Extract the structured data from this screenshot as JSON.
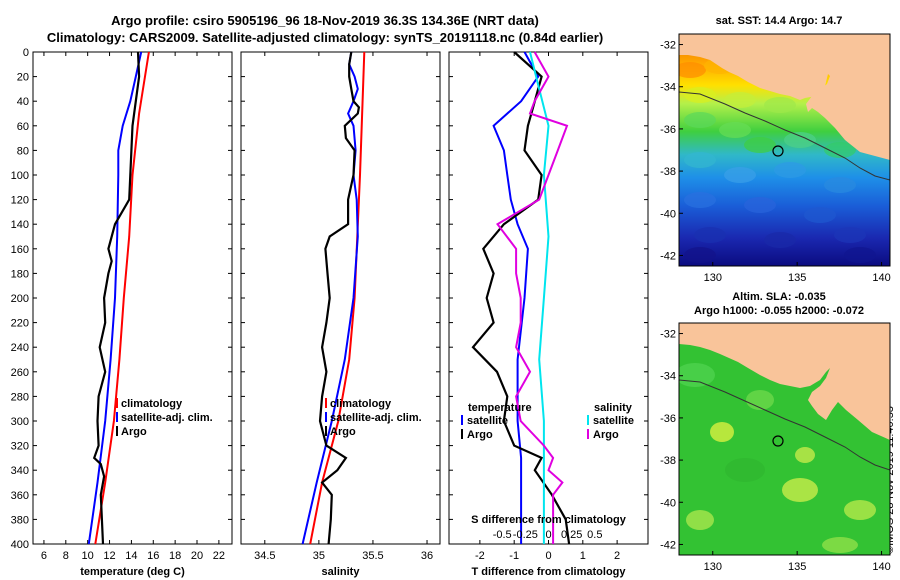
{
  "title_line1": "Argo profile: csiro 5905196_96 18-Nov-2019 36.3S 134.36E (NRT data)",
  "title_line2": "Climatology: CARS2009. Satellite-adjusted climatology: synTS_20191118.nc (0.84d earlier)",
  "sst_title": "sat. SST: 14.4 Argo: 14.7",
  "sla_title1": "Altim. SLA: -0.035",
  "sla_title2": "Argo h1000: -0.055 h2000: -0.072",
  "credit": "©IMOS 28-Nov-2019 11:40:53",
  "colors": {
    "climatology": "#ff0000",
    "satellite": "#0000ff",
    "argo": "#000000",
    "sal_satellite": "#00e5ee",
    "sal_argo": "#e000e0",
    "land": "#f9c49a"
  },
  "chart_data": [
    {
      "type": "line",
      "title": "",
      "xlabel": "temperature (deg C)",
      "ylabel": "",
      "xlim": [
        5,
        23.2
      ],
      "ylim": [
        400,
        0
      ],
      "xticks": [
        "6",
        "8",
        "10",
        "12",
        "14",
        "16",
        "18",
        "20",
        "22"
      ],
      "yticks": [
        "0",
        "20",
        "40",
        "60",
        "80",
        "100",
        "120",
        "140",
        "160",
        "180",
        "200",
        "220",
        "240",
        "260",
        "280",
        "300",
        "320",
        "340",
        "360",
        "380",
        "400"
      ],
      "legend": [
        "climatology",
        "satellite-adj. clim.",
        "Argo"
      ],
      "series": [
        {
          "name": "climatology",
          "color": "red",
          "depth": [
            0,
            50,
            100,
            150,
            200,
            250,
            300,
            350,
            400
          ],
          "values": [
            15.6,
            14.7,
            14.1,
            13.8,
            13.3,
            12.9,
            12.4,
            11.6,
            10.7
          ]
        },
        {
          "name": "satellite-adj. clim.",
          "color": "blue",
          "depth": [
            0,
            20,
            40,
            60,
            80,
            100,
            150,
            200,
            250,
            300,
            350,
            400
          ],
          "values": [
            14.9,
            14.4,
            13.9,
            13.2,
            12.8,
            12.8,
            12.7,
            12.5,
            12.1,
            11.6,
            10.9,
            10.1
          ]
        },
        {
          "name": "Argo",
          "color": "black",
          "depth": [
            0,
            20,
            40,
            60,
            80,
            100,
            120,
            140,
            160,
            170,
            180,
            200,
            220,
            240,
            260,
            280,
            300,
            320,
            330,
            335,
            345,
            360,
            380,
            400
          ],
          "values": [
            14.6,
            14.7,
            14.4,
            14.1,
            14.0,
            13.9,
            13.8,
            12.5,
            11.9,
            12.2,
            11.9,
            11.5,
            11.6,
            11.1,
            11.6,
            11.0,
            10.9,
            11.0,
            10.6,
            11.2,
            11.5,
            11.2,
            11.3,
            11.4
          ]
        }
      ]
    },
    {
      "type": "line",
      "xlabel": "salinity",
      "xlim": [
        34.28,
        36.12
      ],
      "ylim": [
        400,
        0
      ],
      "xticks": [
        "34.5",
        "35",
        "35.5",
        "36"
      ],
      "legend": [
        "climatology",
        "satellite-adj. clim.",
        "Argo"
      ],
      "series": [
        {
          "name": "climatology",
          "color": "red",
          "depth": [
            0,
            100,
            200,
            250,
            300,
            350,
            400
          ],
          "values": [
            35.42,
            35.38,
            35.33,
            35.28,
            35.18,
            35.03,
            34.92
          ]
        },
        {
          "name": "satellite-adj. clim.",
          "color": "blue",
          "depth": [
            0,
            10,
            20,
            30,
            40,
            50,
            60,
            80,
            100,
            120,
            150,
            200,
            250,
            300,
            350,
            400
          ],
          "values": [
            35.3,
            35.28,
            35.33,
            35.36,
            35.32,
            35.27,
            35.32,
            35.34,
            35.32,
            35.35,
            35.36,
            35.32,
            35.24,
            35.12,
            34.98,
            34.85
          ]
        },
        {
          "name": "Argo",
          "color": "black",
          "depth": [
            0,
            10,
            20,
            30,
            40,
            45,
            50,
            60,
            70,
            80,
            100,
            120,
            140,
            150,
            160,
            180,
            200,
            220,
            240,
            260,
            280,
            300,
            320,
            330,
            340,
            350,
            360,
            380,
            400
          ],
          "values": [
            35.3,
            35.28,
            35.28,
            35.3,
            35.32,
            35.37,
            35.36,
            35.24,
            35.25,
            35.33,
            35.32,
            35.27,
            35.27,
            35.1,
            35.06,
            35.08,
            35.1,
            35.07,
            35.03,
            35.07,
            35.03,
            35.01,
            35.07,
            35.25,
            35.17,
            35.03,
            35.12,
            35.11,
            35.09
          ]
        }
      ]
    },
    {
      "type": "line",
      "xlabel": "T difference from climatology",
      "xlabel_top": "S difference from climatology",
      "xlim": [
        -2.9,
        2.9
      ],
      "xticks": [
        "-2",
        "-1",
        "0",
        "1",
        "2"
      ],
      "top_xticks": [
        "-0.5",
        "-0.25",
        "0",
        "0.25",
        "0.5"
      ],
      "ylim": [
        400,
        0
      ],
      "legend_temperature": "temperature",
      "legend_salinity": "salinity",
      "legend_entries": [
        "satellite",
        "Argo",
        "satellite",
        "Argo"
      ],
      "series": [
        {
          "name": "T satellite",
          "color": "blue",
          "depth": [
            0,
            20,
            40,
            60,
            80,
            100,
            120,
            140,
            160,
            200,
            250,
            300,
            330,
            360,
            400
          ],
          "values": [
            -0.7,
            -0.3,
            -0.8,
            -1.6,
            -1.3,
            -1.2,
            -1.1,
            -0.9,
            -0.6,
            -0.7,
            -0.9,
            -0.9,
            -0.8,
            -0.8,
            -0.8
          ]
        },
        {
          "name": "T Argo",
          "color": "black",
          "depth": [
            0,
            20,
            40,
            60,
            80,
            100,
            120,
            140,
            160,
            180,
            200,
            220,
            240,
            260,
            280,
            300,
            320,
            330,
            340,
            360,
            380,
            400
          ],
          "values": [
            -1.0,
            -0.2,
            -0.4,
            -0.6,
            -0.7,
            -0.2,
            -0.3,
            -1.3,
            -1.9,
            -1.6,
            -1.8,
            -1.6,
            -2.2,
            -1.5,
            -1.2,
            -1.3,
            -1.0,
            -0.2,
            -0.4,
            0.1,
            0.5,
            0.6
          ]
        },
        {
          "name": "S satellite",
          "color": "cyan",
          "depth": [
            0,
            30,
            60,
            100,
            150,
            200,
            250,
            300,
            350,
            400
          ],
          "values": [
            -0.2,
            -0.1,
            0.0,
            -0.05,
            0.0,
            -0.05,
            -0.1,
            -0.05,
            -0.05,
            -0.05
          ]
        },
        {
          "name": "S Argo",
          "color": "magenta",
          "depth": [
            0,
            20,
            40,
            50,
            60,
            80,
            100,
            120,
            140,
            160,
            180,
            200,
            220,
            240,
            260,
            280,
            300,
            320,
            330,
            340,
            350,
            360,
            380,
            400
          ],
          "values": [
            -0.15,
            0.0,
            -0.15,
            -0.2,
            0.2,
            0.1,
            0.0,
            -0.1,
            -0.55,
            -0.35,
            -0.35,
            -0.3,
            -0.3,
            -0.35,
            -0.2,
            -0.35,
            -0.3,
            -0.05,
            0.05,
            0.0,
            0.15,
            0.05,
            0.05,
            0.05
          ]
        }
      ]
    },
    {
      "type": "heatmap",
      "title": "sat. SST: 14.4 Argo: 14.7",
      "xticks": [
        "130",
        "135",
        "140"
      ],
      "yticks": [
        "-32",
        "-34",
        "-36",
        "-38",
        "-40",
        "-42"
      ],
      "lon_range": [
        128,
        140.5
      ],
      "lat_range": [
        -42.5,
        -31.5
      ],
      "float_position": [
        134.36,
        -36.3
      ]
    },
    {
      "type": "heatmap",
      "title": "Altim. SLA: -0.035",
      "xticks": [
        "130",
        "135",
        "140"
      ],
      "yticks": [
        "-32",
        "-34",
        "-36",
        "-38",
        "-40",
        "-42"
      ],
      "lon_range": [
        128,
        140.5
      ],
      "lat_range": [
        -42.5,
        -31.5
      ],
      "float_position": [
        134.36,
        -36.3
      ]
    }
  ]
}
